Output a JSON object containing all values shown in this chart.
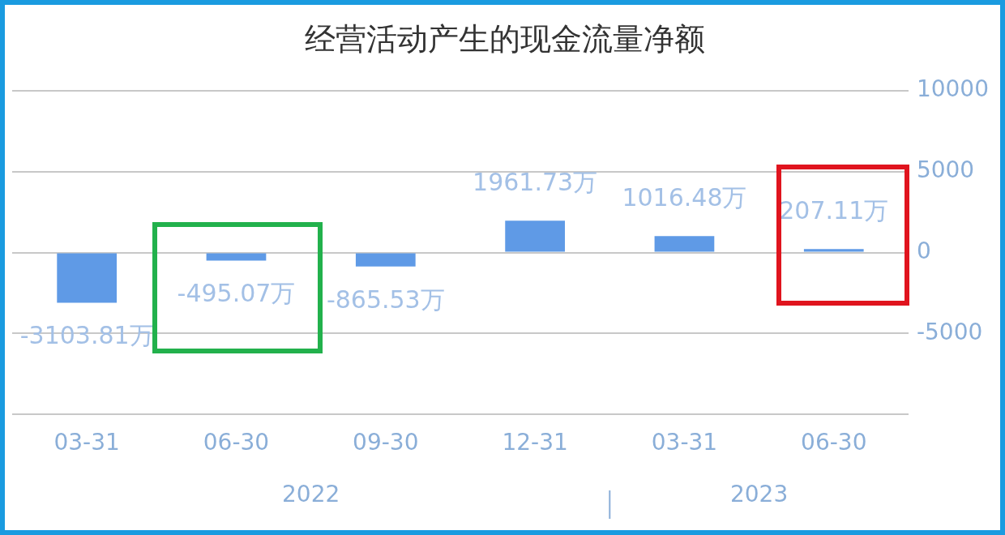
{
  "chart_data": {
    "type": "bar",
    "title": "经营活动产生的现金流量净额",
    "categories": [
      "03-31",
      "06-30",
      "09-30",
      "12-31",
      "03-31",
      "06-30"
    ],
    "values": [
      -3103.81,
      -495.07,
      -865.53,
      1961.73,
      1016.48,
      207.11
    ],
    "value_labels": [
      "-3103.81万",
      "-495.07万",
      "-865.53万",
      "1961.73万",
      "1016.48万",
      "207.11万"
    ],
    "color": "#5f9ae6",
    "ylim": [
      -10000,
      10000
    ],
    "yticks": [
      {
        "value": -10000,
        "label": null
      },
      -5000,
      0,
      5000,
      10000
    ],
    "grid": "y",
    "annotations": [
      "2022",
      "2023"
    ]
  }
}
